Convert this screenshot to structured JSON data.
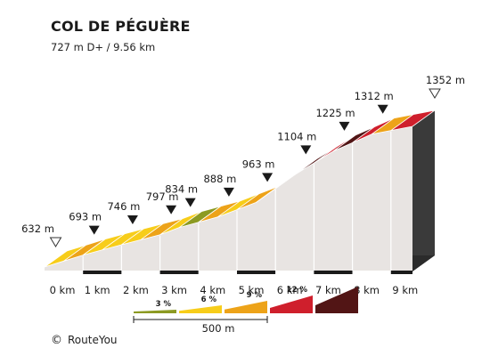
{
  "header": {
    "title": "COL DE PÉGUÈRE",
    "subtitle": "727 m D+ / 9.56 km"
  },
  "footer": {
    "copyright_symbol": "©",
    "brand": "RouteYou"
  },
  "chart_data": {
    "type": "area",
    "title": "COL DE PÉGUÈRE",
    "subtitle": "727 m D+ / 9.56 km",
    "xlabel": "",
    "ylabel": "",
    "x_unit": "km",
    "y_unit": "m",
    "xlim": [
      0,
      9.56
    ],
    "x_ticks": [
      0,
      1,
      2,
      3,
      4,
      5,
      6,
      7,
      8,
      9
    ],
    "x_tick_labels": [
      "0 km",
      "1 km",
      "2 km",
      "3 km",
      "4 km",
      "5 km",
      "6 km",
      "7 km",
      "8 km",
      "9 km"
    ],
    "grid": false,
    "elevation_markers": [
      {
        "x": 0,
        "elevation": 632,
        "label": "632 m",
        "kind": "start"
      },
      {
        "x": 1,
        "elevation": 693,
        "label": "693 m",
        "kind": "km"
      },
      {
        "x": 2,
        "elevation": 746,
        "label": "746 m",
        "kind": "km"
      },
      {
        "x": 3,
        "elevation": 797,
        "label": "797 m",
        "kind": "km"
      },
      {
        "x": 3.5,
        "elevation": 834,
        "label": "834 m",
        "kind": "km"
      },
      {
        "x": 4.5,
        "elevation": 888,
        "label": "888 m",
        "kind": "km"
      },
      {
        "x": 5.5,
        "elevation": 963,
        "label": "963 m",
        "kind": "km"
      },
      {
        "x": 6.5,
        "elevation": 1104,
        "label": "1104 m",
        "kind": "km"
      },
      {
        "x": 7.5,
        "elevation": 1225,
        "label": "1225 m",
        "kind": "km"
      },
      {
        "x": 8.5,
        "elevation": 1312,
        "label": "1312 m",
        "kind": "km"
      },
      {
        "x": 9.56,
        "elevation": 1352,
        "label": "1352 m",
        "kind": "end"
      }
    ],
    "segments": [
      {
        "x0": 0,
        "x1": 0.5,
        "gradient_class": "6"
      },
      {
        "x0": 0.5,
        "x1": 1,
        "gradient_class": "9"
      },
      {
        "x0": 1,
        "x1": 1.5,
        "gradient_class": "6"
      },
      {
        "x0": 1.5,
        "x1": 2,
        "gradient_class": "6"
      },
      {
        "x0": 2,
        "x1": 2.5,
        "gradient_class": "6"
      },
      {
        "x0": 2.5,
        "x1": 3,
        "gradient_class": "9"
      },
      {
        "x0": 3,
        "x1": 3.5,
        "gradient_class": "6"
      },
      {
        "x0": 3.5,
        "x1": 4,
        "gradient_class": "3"
      },
      {
        "x0": 4,
        "x1": 4.5,
        "gradient_class": "9"
      },
      {
        "x0": 4.5,
        "x1": 5,
        "gradient_class": "6"
      },
      {
        "x0": 5,
        "x1": 5.5,
        "gradient_class": "9"
      },
      {
        "x0": 5.5,
        "x1": 6,
        "gradient_class": "9"
      },
      {
        "x0": 6,
        "x1": 6.5,
        "gradient_class": "12"
      },
      {
        "x0": 6.5,
        "x1": 7,
        "gradient_class": "12"
      },
      {
        "x0": 7,
        "x1": 7.5,
        "gradient_class": "10"
      },
      {
        "x0": 7.5,
        "x1": 8,
        "gradient_class": "12"
      },
      {
        "x0": 8,
        "x1": 8.5,
        "gradient_class": "10"
      },
      {
        "x0": 8.5,
        "x1": 9,
        "gradient_class": "9"
      },
      {
        "x0": 9,
        "x1": 9.56,
        "gradient_class": "10"
      }
    ],
    "legend": {
      "position": "bottom-center",
      "items": [
        {
          "label": "3 %",
          "color": "#8c9a22"
        },
        {
          "label": "6 %",
          "color": "#f7cd1a"
        },
        {
          "label": "9 %",
          "color": "#eda319"
        },
        {
          "label": "12 %",
          "color": "#cf1f2c"
        },
        {
          "label": "",
          "color": "#521515"
        }
      ],
      "scale_label": "500 m"
    },
    "colors": {
      "3": "#8c9a22",
      "6": "#f7cd1a",
      "9": "#eda319",
      "10": "#cf1f2c",
      "12": "#521515"
    }
  }
}
